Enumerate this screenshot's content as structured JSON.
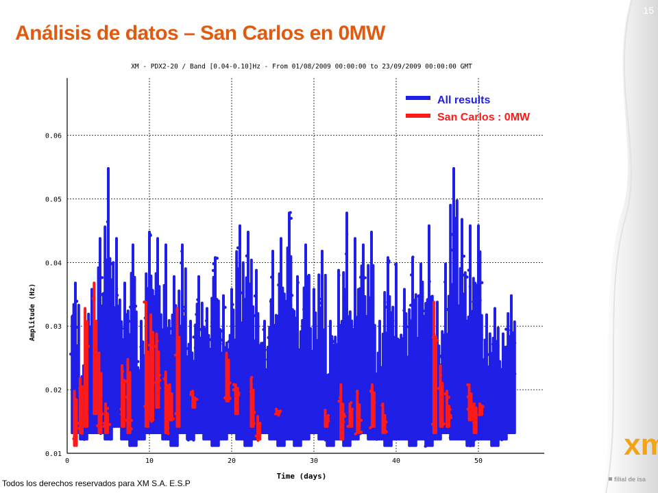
{
  "slide": {
    "number": "15",
    "title": "Análisis de datos – San Carlos en 0MW",
    "footer": "Todos los derechos reservados para XM S.A. E.S.P",
    "logo_text": "xm",
    "logo_tagline": "filial de isa"
  },
  "colors": {
    "title": "#e05a10",
    "logo_orange": "#f2a417",
    "logo_gray": "#9a9a9a",
    "all_results": "#1f1fe6",
    "san_carlos": "#ff1a1a"
  },
  "chart_data": {
    "type": "scatter",
    "title": "XM - PDX2-20 / Band [0.04-0.10]Hz - From 01/08/2009 00:00:00 to 23/09/2009 00:00:00 GMT",
    "xlabel": "Time (days)",
    "ylabel": "Amplitude (Hz)",
    "xlim": [
      0,
      58
    ],
    "ylim": [
      0.01,
      0.069
    ],
    "xticks": [
      0,
      10,
      20,
      30,
      40,
      50
    ],
    "yticks": [
      0.01,
      0.02,
      0.03,
      0.04,
      0.05,
      0.06
    ],
    "ytick_labels": [
      "0.01",
      "0.02",
      "0.03",
      "0.04",
      "0.05",
      "0.06"
    ],
    "grid": true,
    "legend_position": "top-right",
    "series": [
      {
        "name": "All results",
        "color": "#1f1fe6",
        "x": [
          1,
          2,
          3,
          4,
          5,
          6,
          7,
          8,
          9,
          10,
          11,
          12,
          13,
          14,
          15,
          16,
          17,
          18,
          19,
          20,
          21,
          22,
          23,
          24,
          25,
          26,
          27,
          28,
          29,
          30,
          31,
          32,
          33,
          34,
          35,
          36,
          37,
          38,
          39,
          40,
          41,
          42,
          43,
          44,
          45,
          46,
          47,
          48,
          49,
          50,
          51,
          52,
          53,
          54
        ],
        "low": [
          0.013,
          0.012,
          0.013,
          0.013,
          0.012,
          0.014,
          0.012,
          0.011,
          0.012,
          0.013,
          0.013,
          0.012,
          0.011,
          0.013,
          0.012,
          0.013,
          0.012,
          0.011,
          0.012,
          0.013,
          0.012,
          0.011,
          0.012,
          0.013,
          0.012,
          0.011,
          0.012,
          0.011,
          0.012,
          0.013,
          0.012,
          0.011,
          0.012,
          0.011,
          0.012,
          0.013,
          0.012,
          0.012,
          0.011,
          0.012,
          0.012,
          0.011,
          0.012,
          0.011,
          0.012,
          0.013,
          0.012,
          0.012,
          0.011,
          0.012,
          0.012,
          0.011,
          0.012,
          0.013
        ],
        "high": [
          0.037,
          0.024,
          0.036,
          0.044,
          0.055,
          0.044,
          0.037,
          0.043,
          0.031,
          0.045,
          0.044,
          0.043,
          0.038,
          0.043,
          0.031,
          0.038,
          0.033,
          0.041,
          0.035,
          0.036,
          0.046,
          0.045,
          0.039,
          0.031,
          0.042,
          0.044,
          0.048,
          0.038,
          0.043,
          0.036,
          0.042,
          0.031,
          0.039,
          0.048,
          0.044,
          0.043,
          0.045,
          0.031,
          0.041,
          0.04,
          0.036,
          0.041,
          0.04,
          0.046,
          0.034,
          0.04,
          0.055,
          0.047,
          0.046,
          0.046,
          0.032,
          0.033,
          0.029,
          0.035
        ]
      },
      {
        "name": "San Carlos : 0MW",
        "color": "#ff1a1a",
        "x": [
          1.0,
          1.7,
          2.3,
          3.4,
          4.0,
          4.8,
          6.8,
          7.5,
          9.7,
          10.3,
          11.0,
          12.1,
          12.6,
          13.5,
          15.4,
          19.5,
          20.6,
          22.5,
          23.3,
          25.6,
          31.5,
          33.4,
          34.5,
          35.4,
          37.2,
          38.5,
          44.7,
          45.5,
          46.3,
          49.0,
          49.6,
          50.3
        ],
        "low": [
          0.011,
          0.013,
          0.014,
          0.016,
          0.013,
          0.013,
          0.014,
          0.013,
          0.014,
          0.015,
          0.017,
          0.013,
          0.015,
          0.014,
          0.017,
          0.018,
          0.016,
          0.014,
          0.012,
          0.016,
          0.014,
          0.012,
          0.014,
          0.013,
          0.014,
          0.013,
          0.013,
          0.014,
          0.014,
          0.015,
          0.013,
          0.016
        ],
        "high": [
          0.02,
          0.022,
          0.033,
          0.037,
          0.026,
          0.018,
          0.024,
          0.025,
          0.034,
          0.032,
          0.029,
          0.023,
          0.021,
          0.033,
          0.02,
          0.026,
          0.021,
          0.022,
          0.016,
          0.017,
          0.017,
          0.021,
          0.018,
          0.02,
          0.021,
          0.018,
          0.034,
          0.024,
          0.02,
          0.021,
          0.018,
          0.018
        ]
      }
    ]
  }
}
